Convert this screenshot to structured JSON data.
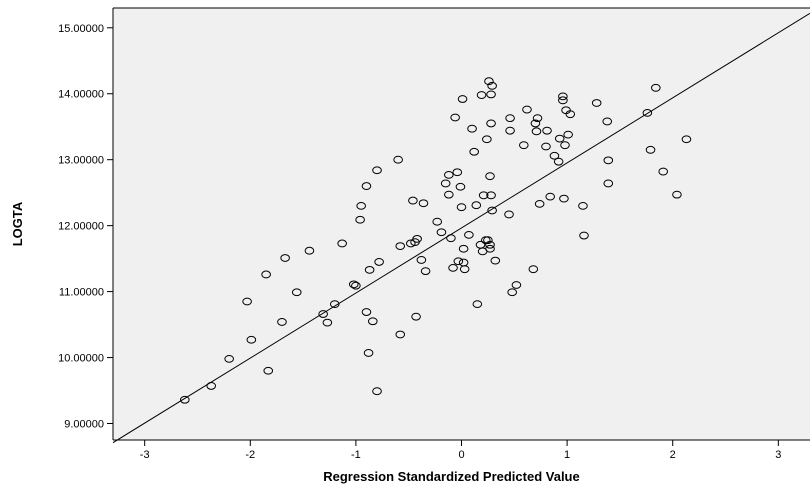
{
  "chart_data": {
    "type": "scatter",
    "title": "",
    "xlabel": "Regression Standardized Predicted Value",
    "ylabel": "LOGTA",
    "xlim": [
      -3.3,
      3.3
    ],
    "ylim": [
      8.75,
      15.3
    ],
    "x_ticks": [
      -3,
      -2,
      -1,
      0,
      1,
      2,
      3
    ],
    "x_tick_labels": [
      "-3",
      "-2",
      "-1",
      "0",
      "1",
      "2",
      "3"
    ],
    "y_ticks": [
      9,
      10,
      11,
      12,
      13,
      14,
      15
    ],
    "y_tick_labels": [
      "9.00000",
      "10.00000",
      "11.00000",
      "12.00000",
      "13.00000",
      "14.00000",
      "15.00000"
    ],
    "grid": false,
    "marker": "open-circle",
    "colors": {
      "plot_background": "#f0f0f0",
      "point_stroke": "#000000",
      "fit_line": "#000000"
    },
    "fit_line": {
      "x": [
        -3.3,
        3.3
      ],
      "y": [
        8.71,
        15.22
      ]
    },
    "points": [
      [
        -2.62,
        9.36
      ],
      [
        -2.37,
        9.57
      ],
      [
        -2.2,
        9.98
      ],
      [
        -2.03,
        10.85
      ],
      [
        -1.99,
        10.27
      ],
      [
        -1.85,
        11.26
      ],
      [
        -1.83,
        9.8
      ],
      [
        -1.7,
        10.54
      ],
      [
        -1.67,
        11.51
      ],
      [
        -1.56,
        10.99
      ],
      [
        -1.44,
        11.62
      ],
      [
        -1.31,
        10.66
      ],
      [
        -1.27,
        10.53
      ],
      [
        -1.2,
        10.81
      ],
      [
        -1.13,
        11.73
      ],
      [
        -1.02,
        11.11
      ],
      [
        -1.0,
        11.09
      ],
      [
        -0.96,
        12.09
      ],
      [
        -0.95,
        12.3
      ],
      [
        -0.9,
        12.6
      ],
      [
        -0.9,
        10.69
      ],
      [
        -0.88,
        10.07
      ],
      [
        -0.87,
        11.33
      ],
      [
        -0.84,
        10.55
      ],
      [
        -0.8,
        12.84
      ],
      [
        -0.8,
        9.49
      ],
      [
        -0.78,
        11.45
      ],
      [
        -0.6,
        13.0
      ],
      [
        -0.58,
        11.69
      ],
      [
        -0.58,
        10.35
      ],
      [
        -0.48,
        11.73
      ],
      [
        -0.46,
        12.38
      ],
      [
        -0.44,
        11.75
      ],
      [
        -0.43,
        10.62
      ],
      [
        -0.42,
        11.8
      ],
      [
        -0.38,
        11.48
      ],
      [
        -0.36,
        12.34
      ],
      [
        -0.34,
        11.31
      ],
      [
        -0.23,
        12.06
      ],
      [
        -0.19,
        11.9
      ],
      [
        -0.15,
        12.64
      ],
      [
        -0.12,
        12.47
      ],
      [
        -0.12,
        12.77
      ],
      [
        -0.1,
        11.81
      ],
      [
        -0.08,
        11.36
      ],
      [
        -0.06,
        13.64
      ],
      [
        -0.04,
        12.81
      ],
      [
        -0.03,
        11.46
      ],
      [
        -0.01,
        12.59
      ],
      [
        0.0,
        12.28
      ],
      [
        0.01,
        13.92
      ],
      [
        0.02,
        11.65
      ],
      [
        0.02,
        11.44
      ],
      [
        0.03,
        11.34
      ],
      [
        0.07,
        11.86
      ],
      [
        0.1,
        13.47
      ],
      [
        0.12,
        13.12
      ],
      [
        0.14,
        12.31
      ],
      [
        0.15,
        10.81
      ],
      [
        0.18,
        11.71
      ],
      [
        0.19,
        13.98
      ],
      [
        0.2,
        11.61
      ],
      [
        0.21,
        12.46
      ],
      [
        0.23,
        11.78
      ],
      [
        0.24,
        13.31
      ],
      [
        0.25,
        11.78
      ],
      [
        0.26,
        14.19
      ],
      [
        0.27,
        12.75
      ],
      [
        0.27,
        11.71
      ],
      [
        0.27,
        11.65
      ],
      [
        0.28,
        12.46
      ],
      [
        0.28,
        13.55
      ],
      [
        0.28,
        13.99
      ],
      [
        0.29,
        14.12
      ],
      [
        0.29,
        12.23
      ],
      [
        0.32,
        11.47
      ],
      [
        0.45,
        12.17
      ],
      [
        0.46,
        13.63
      ],
      [
        0.46,
        13.44
      ],
      [
        0.48,
        10.99
      ],
      [
        0.52,
        11.1
      ],
      [
        0.59,
        13.22
      ],
      [
        0.62,
        13.76
      ],
      [
        0.68,
        11.34
      ],
      [
        0.7,
        13.55
      ],
      [
        0.71,
        13.43
      ],
      [
        0.72,
        13.63
      ],
      [
        0.74,
        12.33
      ],
      [
        0.8,
        13.2
      ],
      [
        0.81,
        13.44
      ],
      [
        0.84,
        12.44
      ],
      [
        0.88,
        13.06
      ],
      [
        0.92,
        12.97
      ],
      [
        0.93,
        13.32
      ],
      [
        0.96,
        13.96
      ],
      [
        0.96,
        13.9
      ],
      [
        0.97,
        12.41
      ],
      [
        0.98,
        13.22
      ],
      [
        0.99,
        13.75
      ],
      [
        1.01,
        13.38
      ],
      [
        1.03,
        13.69
      ],
      [
        1.15,
        12.3
      ],
      [
        1.16,
        11.85
      ],
      [
        1.28,
        13.86
      ],
      [
        1.38,
        13.58
      ],
      [
        1.39,
        12.99
      ],
      [
        1.39,
        12.64
      ],
      [
        1.76,
        13.71
      ],
      [
        1.79,
        13.15
      ],
      [
        1.84,
        14.09
      ],
      [
        1.91,
        12.82
      ],
      [
        2.04,
        12.47
      ],
      [
        2.13,
        13.31
      ]
    ]
  }
}
